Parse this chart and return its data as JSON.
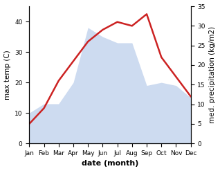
{
  "months": [
    "Jan",
    "Feb",
    "Mar",
    "Apr",
    "May",
    "Jun",
    "Jul",
    "Aug",
    "Sep",
    "Oct",
    "Nov",
    "Dec"
  ],
  "temp": [
    10,
    13,
    13,
    20,
    38,
    35,
    33,
    33,
    19,
    20,
    19,
    15
  ],
  "precip": [
    5,
    9,
    16,
    21,
    26,
    29,
    31,
    30,
    33,
    22,
    17,
    12
  ],
  "temp_color_fill": "#c5d5ee",
  "precip_color": "#cc2222",
  "left_ylabel": "max temp (C)",
  "right_ylabel": "med. precipitation (kg/m2)",
  "xlabel": "date (month)",
  "left_ylim": [
    0,
    45
  ],
  "right_ylim": [
    0,
    35
  ],
  "left_yticks": [
    0,
    10,
    20,
    30,
    40
  ],
  "right_yticks": [
    0,
    5,
    10,
    15,
    20,
    25,
    30,
    35
  ],
  "label_fontsize": 7.5,
  "tick_fontsize": 6.5,
  "xlabel_fontsize": 8,
  "linewidth": 1.8
}
